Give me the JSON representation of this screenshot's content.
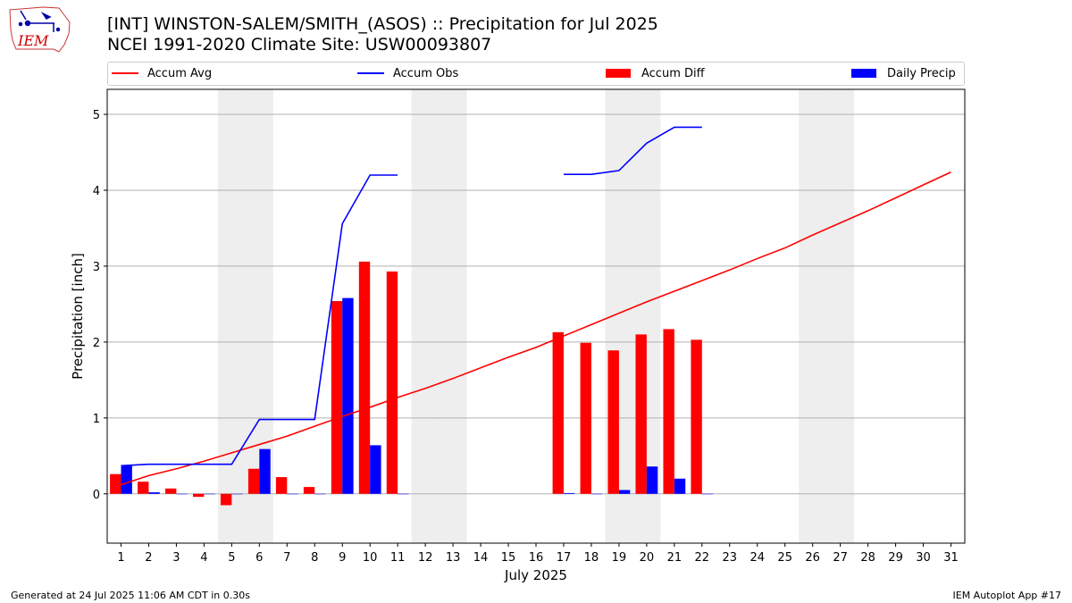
{
  "header": {
    "logo_text": "IEM",
    "title_line1": "[INT] WINSTON-SALEM/SMITH_(ASOS) :: Precipitation for Jul 2025",
    "title_line2": "NCEI 1991-2020 Climate Site: USW00093807"
  },
  "footer": {
    "left": "Generated at 24 Jul 2025 11:06 AM CDT in 0.30s",
    "right": "IEM Autoplot App #17"
  },
  "colors": {
    "accum_avg": "#ff0000",
    "accum_obs": "#0000ff",
    "accum_diff": "#ff0000",
    "daily_precip": "#0000ff",
    "weekend_shade": "#eeeeee",
    "grid": "#b0b0b0"
  },
  "chart_data": {
    "type": "bar",
    "xlabel": "July 2025",
    "ylabel": "Precipitation [inch]",
    "xlim": [
      0.5,
      31.5
    ],
    "ylim": [
      -0.65,
      5.33
    ],
    "yticks": [
      0,
      1,
      2,
      3,
      4,
      5
    ],
    "grid": true,
    "legend_position": "top",
    "weekend_days": [
      5,
      6,
      12,
      13,
      19,
      20,
      26,
      27
    ],
    "days": [
      1,
      2,
      3,
      4,
      5,
      6,
      7,
      8,
      9,
      10,
      11,
      12,
      13,
      14,
      15,
      16,
      17,
      18,
      19,
      20,
      21,
      22,
      23,
      24,
      25,
      26,
      27,
      28,
      29,
      30,
      31
    ],
    "series": [
      {
        "name": "Accum Avg",
        "kind": "line",
        "values": [
          0.12,
          0.24,
          0.33,
          0.43,
          0.54,
          0.65,
          0.76,
          0.89,
          1.02,
          1.14,
          1.27,
          1.39,
          1.52,
          1.66,
          1.8,
          1.93,
          2.08,
          2.23,
          2.38,
          2.53,
          2.67,
          2.81,
          2.95,
          3.1,
          3.24,
          3.41,
          3.57,
          3.73,
          3.9,
          4.07,
          4.24
        ]
      },
      {
        "name": "Accum Obs",
        "kind": "line",
        "values": [
          0.37,
          0.39,
          0.39,
          0.39,
          0.39,
          0.98,
          0.98,
          0.98,
          3.56,
          4.2,
          4.2,
          null,
          null,
          null,
          null,
          null,
          4.21,
          4.21,
          4.26,
          4.62,
          4.83,
          4.83,
          null,
          null,
          null,
          null,
          null,
          null,
          null,
          null,
          null
        ]
      },
      {
        "name": "Accum Diff",
        "kind": "bar",
        "values": [
          0.26,
          0.16,
          0.07,
          -0.04,
          -0.15,
          0.33,
          0.22,
          0.09,
          2.54,
          3.06,
          2.93,
          null,
          null,
          null,
          null,
          null,
          2.13,
          1.99,
          1.89,
          2.1,
          2.17,
          2.03,
          null,
          null,
          null,
          null,
          null,
          null,
          null,
          null,
          null
        ]
      },
      {
        "name": "Daily Precip",
        "kind": "bar",
        "values": [
          0.37,
          0.02,
          0.0,
          0.0,
          0.0,
          0.59,
          0.0,
          0.0,
          2.58,
          0.64,
          0.0,
          null,
          null,
          null,
          null,
          null,
          0.01,
          0.0,
          0.05,
          0.36,
          0.2,
          0.0,
          null,
          null,
          null,
          null,
          null,
          null,
          null,
          null,
          null
        ]
      }
    ]
  }
}
